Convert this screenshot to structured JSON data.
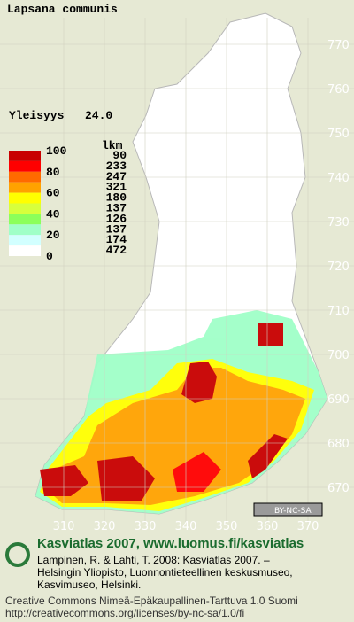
{
  "header": {
    "title": "Lapsana communis"
  },
  "legend": {
    "label": "Yleisyys",
    "index": "24.0",
    "scale": [
      "100",
      "80",
      "60",
      "40",
      "20",
      "0"
    ],
    "count_header": "lkm",
    "counts": [
      90,
      233,
      247,
      321,
      180,
      137,
      126,
      137,
      174,
      472
    ],
    "colors": [
      "#c80000",
      "#ff0000",
      "#ff6a00",
      "#ffa200",
      "#ffff00",
      "#d7ff3c",
      "#8cff5a",
      "#a0ffc8",
      "#d2ffff",
      "#ffffff"
    ]
  },
  "grid": {
    "northing": [
      770,
      760,
      750,
      740,
      730,
      720,
      710,
      700,
      690,
      680,
      670
    ],
    "easting": [
      310,
      320,
      330,
      340,
      350,
      360,
      370
    ]
  },
  "badge": "BY-NC-SA",
  "footer": {
    "heading": "Kasviatlas 2007, www.luomus.fi/kasviatlas",
    "citation": [
      "Lampinen, R. & Lahti, T. 2008: Kasviatlas 2007. –",
      "Helsingin Yliopisto, Luonnontieteellinen keskusmuseo,",
      "Kasvimuseo, Helsinki."
    ],
    "license": [
      "Creative Commons Nimeä-Epäkaupallinen-Tarttuva 1.0 Suomi",
      "http://creativecommons.org/licenses/by-nc-sa/1.0/fi"
    ]
  }
}
